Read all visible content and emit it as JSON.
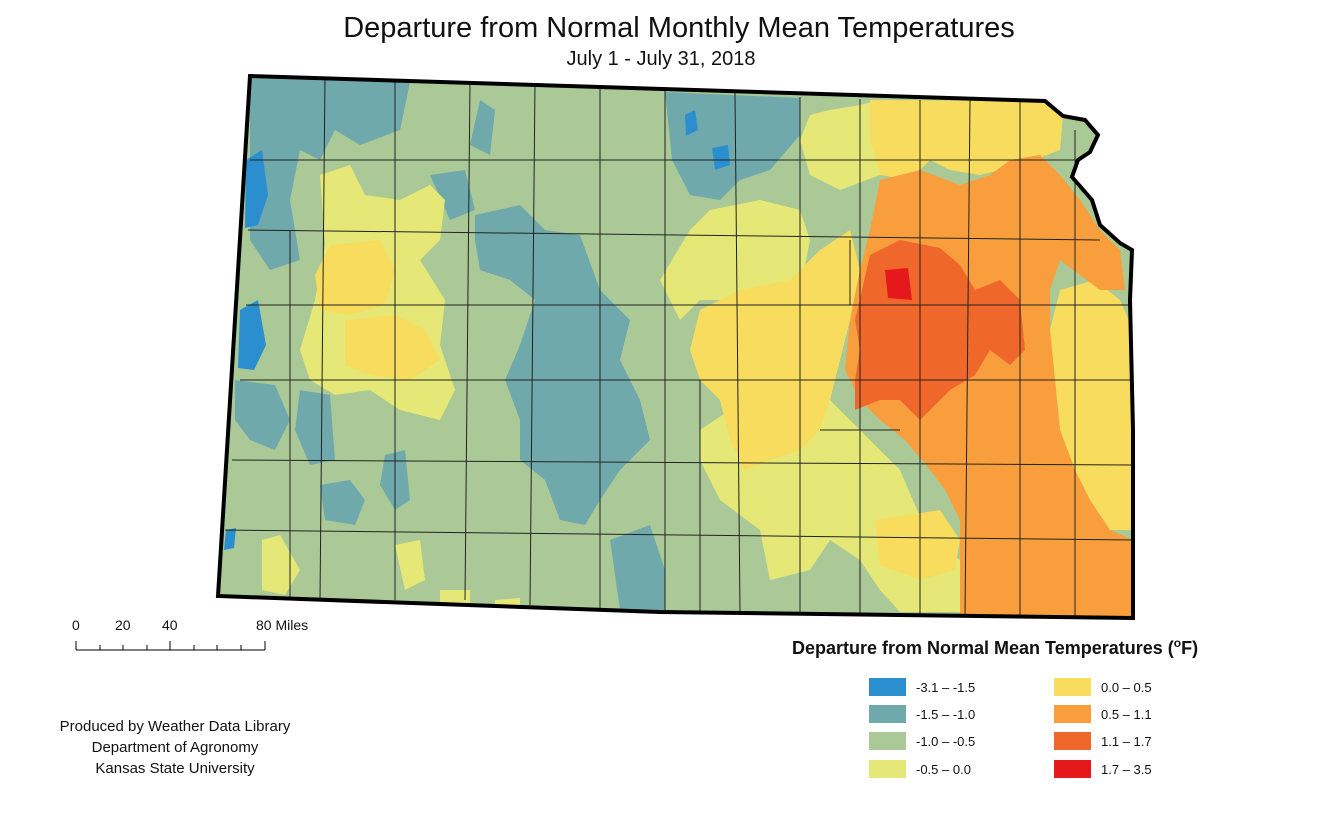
{
  "title": "Departure from Normal Monthly Mean Temperatures",
  "subtitle": "July 1 - July 31, 2018",
  "scale_bar": {
    "ticks": [
      "0",
      "20",
      "40",
      "80 Miles"
    ]
  },
  "legend": {
    "title": "Departure from Normal Mean Temperatures (",
    "unit_sup": "o",
    "unit_after": "F)",
    "items": [
      {
        "label": "-3.1 – -1.5",
        "color": "#2b8fcf"
      },
      {
        "label": "-1.5 – -1.0",
        "color": "#6fa9ac"
      },
      {
        "label": "-1.0 – -0.5",
        "color": "#aac996"
      },
      {
        "label": "-0.5 – 0.0",
        "color": "#e5e877"
      },
      {
        "label": "0.0 – 0.5",
        "color": "#f8dc5e"
      },
      {
        "label": "0.5 – 1.1",
        "color": "#f89e3c"
      },
      {
        "label": "1.1 – 1.7",
        "color": "#f0672b"
      },
      {
        "label": "1.7 – 3.5",
        "color": "#e5191c"
      }
    ]
  },
  "credits": {
    "line1": "Produced by Weather Data Library",
    "line2": "Department of Agronomy",
    "line3": "Kansas State University"
  },
  "map": {
    "region": "Kansas",
    "style": {
      "boundary_color": "#000000",
      "county_line_color": "#222222"
    }
  }
}
